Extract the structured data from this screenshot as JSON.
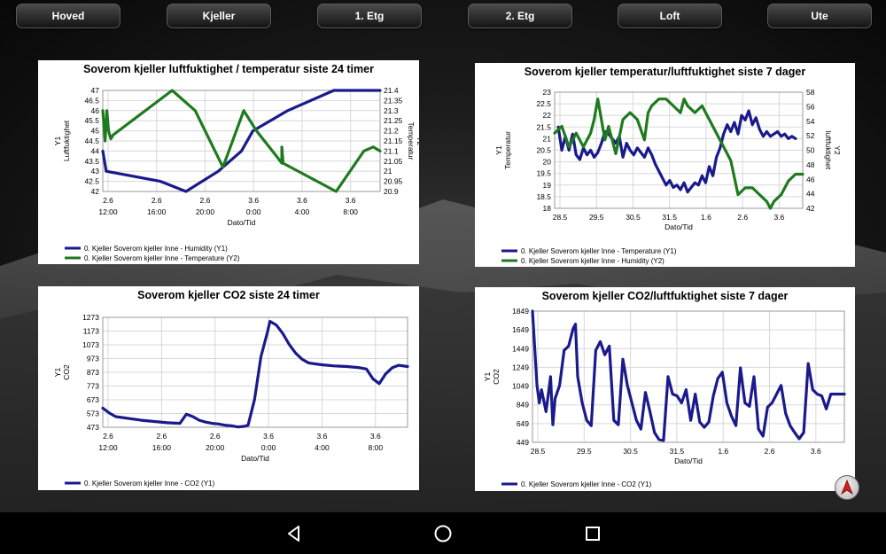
{
  "tabs": [
    {
      "label": "Hoved"
    },
    {
      "label": "Kjeller"
    },
    {
      "label": "1. Etg"
    },
    {
      "label": "2. Etg"
    },
    {
      "label": "Loft"
    },
    {
      "label": "Ute"
    }
  ],
  "colors": {
    "series1": "#1a1a8c",
    "series2": "#1f7a1f",
    "grid": "#d8d8d8"
  },
  "icons": {
    "back": "back-triangle-icon",
    "home": "home-circle-icon",
    "recents": "recents-square-icon",
    "compass": "compass-arrow-icon"
  },
  "chart_data": [
    {
      "type": "line",
      "title": "Soverom kjeller luftfuktighet / temperatur siste 24 timer",
      "xlabel": "Dato/Tid",
      "ylabel": "Y1 Luftfuktighet",
      "y2label": "Y2 Temperatur",
      "x_ticks": [
        [
          "2.6",
          "12:00"
        ],
        [
          "2.6",
          "16:00"
        ],
        [
          "2.6",
          "20:00"
        ],
        [
          "3.6",
          "0:00"
        ],
        [
          "3.6",
          "4:00"
        ],
        [
          "3.6",
          "8:00"
        ]
      ],
      "y_ticks": [
        "47",
        "46.5",
        "46",
        "45.5",
        "45",
        "44.5",
        "44",
        "43.5",
        "43",
        "42.5",
        "42"
      ],
      "y2_ticks": [
        "21.4",
        "21.35",
        "21.3",
        "21.25",
        "21.2",
        "21.15",
        "21.1",
        "21.05",
        "21",
        "20.95",
        "20.9"
      ],
      "ylim": [
        42,
        47
      ],
      "y2lim": [
        20.9,
        21.4
      ],
      "xlim": [
        0,
        24
      ],
      "series": [
        {
          "name": "0. Kjeller Soverom kjeller Inne - Humidity (Y1)",
          "axis": "y1",
          "color": "#1a1a8c",
          "x": [
            0,
            0.3,
            5,
            7.2,
            10,
            12,
            13,
            16,
            20,
            23,
            24
          ],
          "y": [
            44,
            43,
            42.5,
            42,
            43,
            44,
            45,
            46,
            47,
            47,
            47
          ]
        },
        {
          "name": "0. Kjeller Soverom kjeller Inne - Temperature (Y2)",
          "axis": "y2",
          "color": "#1f7a1f",
          "x": [
            0,
            0.2,
            0.35,
            0.5,
            0.7,
            0.9,
            6,
            8,
            10.4,
            12.2,
            13.3,
            15.1,
            15.5,
            15.5,
            15.6,
            20.2,
            22.6,
            23.4,
            24
          ],
          "y": [
            21.3,
            21.15,
            21.3,
            21.2,
            21.16,
            21.18,
            21.4,
            21.3,
            21.02,
            21.3,
            21.2,
            21.07,
            21.04,
            21.12,
            21.04,
            20.9,
            21.1,
            21.12,
            21.1
          ]
        }
      ],
      "legend": "bottom-left"
    },
    {
      "type": "line",
      "title": "Soverom kjeller temperatur/luftfuktighet siste 7 dager",
      "xlabel": "Dato/Tid",
      "ylabel": "Y1 Temperatur",
      "y2label": "Y2 luftfuktighet",
      "x_ticks": [
        [
          "28.5"
        ],
        [
          "29.5"
        ],
        [
          "30.5"
        ],
        [
          "31.5"
        ],
        [
          "1.6"
        ],
        [
          "2.6"
        ],
        [
          "3.6"
        ]
      ],
      "y_ticks": [
        "23",
        "22.5",
        "22",
        "21.5",
        "21",
        "20.5",
        "20",
        "19.5",
        "19",
        "18.5",
        "18"
      ],
      "y2_ticks": [
        "58",
        "56",
        "54",
        "52",
        "50",
        "48",
        "46",
        "44",
        "42"
      ],
      "ylim": [
        18,
        23
      ],
      "y2lim": [
        42,
        59
      ],
      "xlim": [
        -0.5,
        6.4
      ],
      "series": [
        {
          "name": "0. Kjeller Soverom kjeller Inne - Temperature (Y1)",
          "axis": "y1",
          "color": "#1a1a8c",
          "x": [
            -0.4,
            -0.3,
            -0.2,
            -0.1,
            0,
            0.1,
            0.2,
            0.3,
            0.4,
            0.5,
            0.6,
            0.7,
            0.8,
            0.9,
            1.0,
            1.1,
            1.2,
            1.3,
            1.4,
            1.5,
            1.6,
            1.7,
            1.8,
            1.9,
            2.0,
            2.1,
            2.2,
            2.3,
            2.4,
            2.5,
            2.6,
            2.7,
            2.8,
            2.9,
            3.0,
            3.1,
            3.2,
            3.3,
            3.4,
            3.5,
            3.6,
            3.7,
            3.8,
            3.9,
            4.0,
            4.1,
            4.2,
            4.3,
            4.4,
            4.5,
            4.6,
            4.7,
            4.8,
            4.9,
            5.0,
            5.1,
            5.2,
            5.3,
            5.4,
            5.5,
            5.6,
            5.7,
            5.8,
            5.9,
            6.0,
            6.1,
            6.2
          ],
          "y": [
            21.5,
            20.5,
            21.1,
            20.5,
            21.2,
            20.3,
            20.1,
            20.6,
            20.3,
            20.5,
            20.2,
            20.4,
            20.8,
            21.3,
            21.2,
            21.0,
            20.8,
            21.1,
            20.2,
            20.8,
            20.5,
            20.3,
            20.6,
            20.4,
            20.2,
            20.6,
            20.3,
            19.9,
            19.6,
            19.3,
            19.0,
            19.2,
            18.9,
            19.0,
            18.8,
            19.1,
            18.7,
            18.9,
            19.1,
            19.0,
            19.4,
            19.1,
            19.8,
            19.4,
            20.2,
            20.6,
            21.2,
            21.6,
            21.3,
            21.7,
            21.2,
            22.0,
            21.8,
            22.2,
            21.6,
            21.9,
            21.4,
            21.1,
            21.3,
            21.1,
            21.2,
            21.3,
            21.1,
            21.2,
            21.0,
            21.1,
            21.0
          ]
        },
        {
          "name": "0. Kjeller Soverom kjeller Inne - Humidity (Y2)",
          "axis": "y2",
          "color": "#1f7a1f",
          "x": [
            -0.5,
            -0.3,
            -0.1,
            0.1,
            0.3,
            0.5,
            0.6,
            0.7,
            0.9,
            1.0,
            1.2,
            1.4,
            1.6,
            1.8,
            2.0,
            2.1,
            2.2,
            2.4,
            2.6,
            2.8,
            3.0,
            3.1,
            3.2,
            3.4,
            3.6,
            3.8,
            4.0,
            4.2,
            4.4,
            4.6,
            4.8,
            5.0,
            5.2,
            5.4,
            5.5,
            5.6,
            5.8,
            6.0,
            6.2,
            6.4
          ],
          "y": [
            53,
            54,
            51,
            53,
            51,
            53,
            55,
            58,
            52,
            54,
            50,
            55,
            56,
            55,
            52,
            56,
            57,
            58,
            58,
            57,
            56,
            58,
            57,
            56,
            57,
            55,
            53,
            51,
            49,
            44,
            45,
            45,
            44,
            43,
            42,
            43,
            44,
            46,
            47,
            47
          ]
        }
      ],
      "legend": "bottom-left"
    },
    {
      "type": "line",
      "title": "Soverom kjeller CO2 siste 24 timer",
      "xlabel": "Dato/Tid",
      "ylabel": "Y1 CO2",
      "x_ticks": [
        [
          "2.6",
          "12:00"
        ],
        [
          "2.6",
          "16:00"
        ],
        [
          "2.6",
          "20:00"
        ],
        [
          "3.6",
          "0:00"
        ],
        [
          "3.6",
          "4:00"
        ],
        [
          "3.6",
          "8:00"
        ]
      ],
      "y_ticks": [
        "1273",
        "1173",
        "1073",
        "973",
        "873",
        "773",
        "673",
        "573",
        "473"
      ],
      "ylim": [
        473,
        1373
      ],
      "xlim": [
        0,
        23.7
      ],
      "series": [
        {
          "name": "0. Kjeller Soverom kjeller Inne - CO2 (Y1)",
          "axis": "y1",
          "color": "#1a1a8c",
          "x": [
            0,
            0.5,
            1,
            2,
            3,
            4,
            5,
            6,
            6.5,
            7,
            7.5,
            8,
            8.5,
            9,
            9.5,
            10,
            10.5,
            11,
            11.3,
            11.8,
            12.3,
            12.8,
            13,
            13.5,
            14,
            14.5,
            15,
            15.5,
            16,
            17,
            18,
            19,
            20,
            20.5,
            21,
            21.5,
            22,
            22.5,
            23,
            23.7
          ],
          "y": [
            630,
            590,
            560,
            545,
            530,
            520,
            510,
            505,
            580,
            560,
            530,
            515,
            505,
            500,
            490,
            485,
            475,
            480,
            490,
            700,
            1050,
            1250,
            1340,
            1310,
            1240,
            1150,
            1080,
            1030,
            1000,
            985,
            975,
            970,
            960,
            950,
            870,
            830,
            910,
            960,
            980,
            970
          ]
        }
      ],
      "legend": "bottom-left"
    },
    {
      "type": "line",
      "title": "Soverom kjeller CO2/luftfuktighet siste 7 dager",
      "xlabel": "Dato/Tid",
      "ylabel": "Y1 CO2",
      "x_ticks": [
        [
          "28.5"
        ],
        [
          "29.5"
        ],
        [
          "30.5"
        ],
        [
          "31.5"
        ],
        [
          "1.6"
        ],
        [
          "2.6"
        ],
        [
          "3.6"
        ]
      ],
      "y_ticks": [
        "1849",
        "1649",
        "1449",
        "1249",
        "1049",
        "849",
        "649",
        "449"
      ],
      "ylim": [
        449,
        1949
      ],
      "xlim": [
        -0.4,
        6.5
      ],
      "series": [
        {
          "name": "0. Kjeller Soverom kjeller Inne - CO2 (Y1)",
          "axis": "y1",
          "color": "#1a1a8c",
          "x": [
            -0.4,
            -0.3,
            -0.25,
            -0.2,
            -0.1,
            0,
            0.05,
            0.1,
            0.2,
            0.3,
            0.4,
            0.5,
            0.55,
            0.6,
            0.7,
            0.8,
            0.9,
            1.0,
            1.1,
            1.2,
            1.3,
            1.4,
            1.5,
            1.6,
            1.7,
            1.8,
            1.9,
            2.0,
            2.1,
            2.2,
            2.3,
            2.4,
            2.5,
            2.6,
            2.7,
            2.8,
            2.9,
            3.0,
            3.1,
            3.2,
            3.3,
            3.4,
            3.5,
            3.6,
            3.7,
            3.8,
            3.9,
            4.0,
            4.1,
            4.2,
            4.3,
            4.4,
            4.5,
            4.6,
            4.7,
            4.8,
            4.9,
            5.0,
            5.1,
            5.2,
            5.3,
            5.4,
            5.5,
            5.6,
            5.7,
            5.8,
            5.9,
            6.0,
            6.1,
            6.2,
            6.3,
            6.4,
            6.5
          ],
          "y": [
            1949,
            1100,
            900,
            1050,
            800,
            1200,
            650,
            950,
            1100,
            1500,
            1550,
            1750,
            1800,
            1200,
            900,
            700,
            640,
            1500,
            1600,
            1450,
            1550,
            700,
            650,
            1400,
            1100,
            900,
            700,
            600,
            1020,
            800,
            560,
            480,
            470,
            1200,
            1000,
            980,
            900,
            1050,
            700,
            1000,
            680,
            620,
            680,
            980,
            1180,
            1250,
            900,
            750,
            640,
            1300,
            900,
            860,
            1200,
            600,
            520,
            850,
            900,
            1000,
            1100,
            780,
            640,
            560,
            490,
            560,
            1350,
            1050,
            1000,
            980,
            830,
            1000,
            1000,
            1000,
            1000
          ]
        }
      ],
      "legend": "bottom-left"
    }
  ]
}
